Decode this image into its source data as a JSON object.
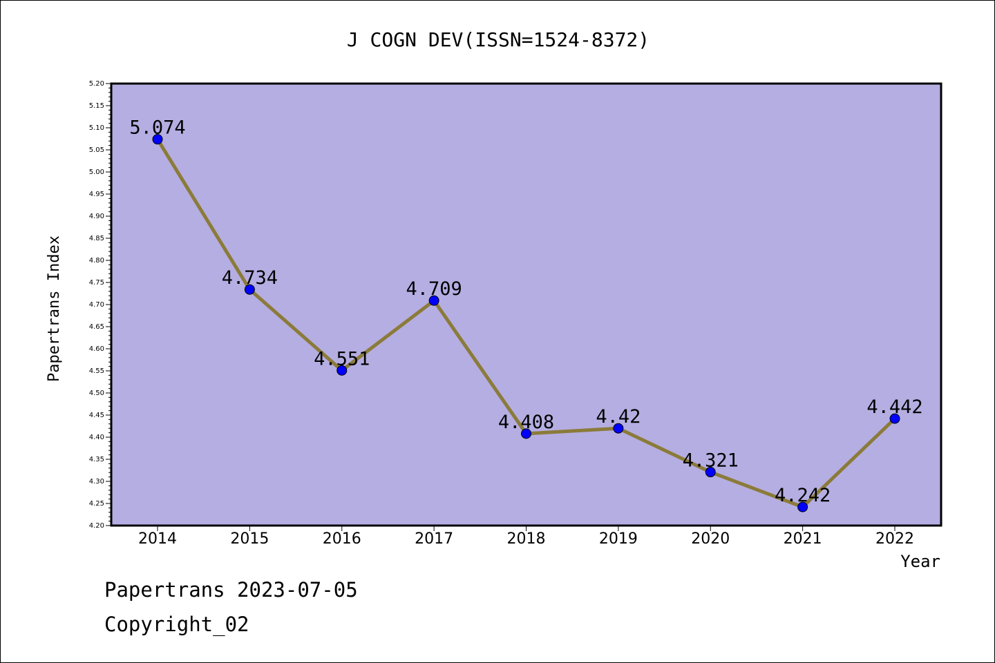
{
  "chart_data": {
    "type": "line",
    "title": "J COGN DEV(ISSN=1524-8372)",
    "xlabel": "Year",
    "ylabel": "Papertrans Index",
    "categories": [
      "2014",
      "2015",
      "2016",
      "2017",
      "2018",
      "2019",
      "2020",
      "2021",
      "2022"
    ],
    "values": [
      5.074,
      4.734,
      4.551,
      4.709,
      4.408,
      4.42,
      4.321,
      4.242,
      4.442
    ],
    "data_labels": [
      "5.074",
      "4.734",
      "4.551",
      "4.709",
      "4.408",
      "4.42",
      "4.321",
      "4.242",
      "4.442"
    ],
    "ylim": [
      4.2,
      5.2
    ],
    "y_tick_step": 0.05,
    "grid": false,
    "colors": {
      "plot_background": "#b5aee2",
      "line": "#8b7b3a",
      "marker": "#0000ff"
    }
  },
  "footer": {
    "stamp": "Papertrans 2023-07-05",
    "copyright": "Copyright_02"
  }
}
